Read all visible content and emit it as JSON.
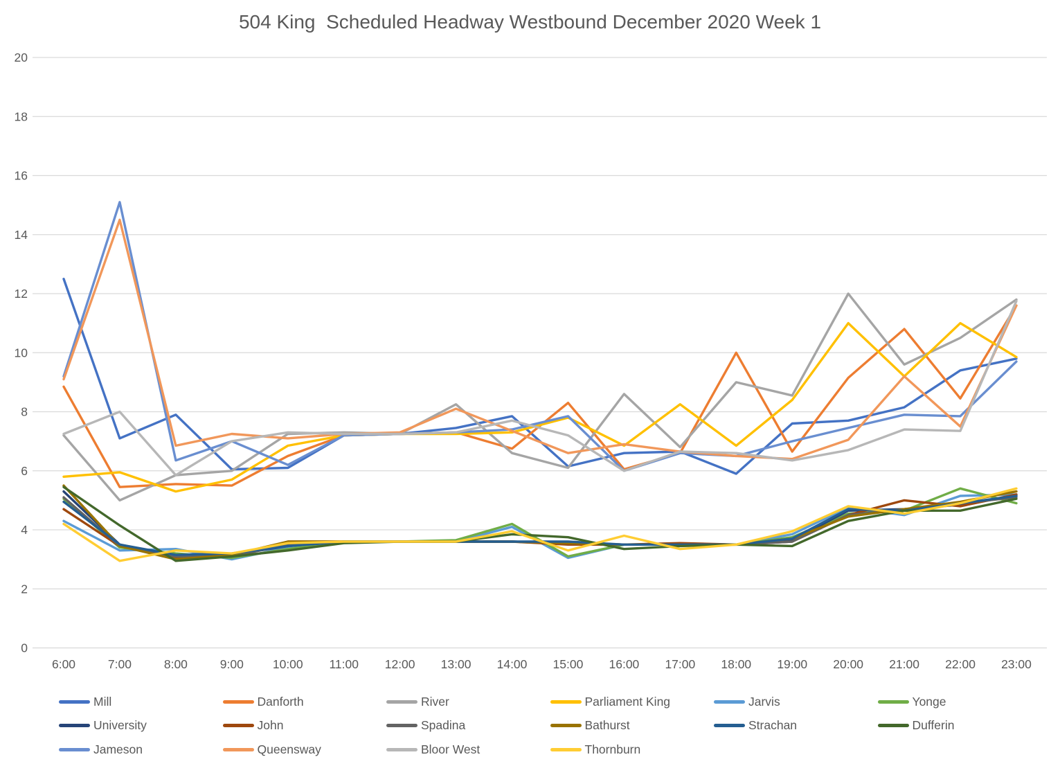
{
  "title": "504 King  Scheduled Headway Westbound December 2020 Week 1",
  "chart_data": {
    "type": "line",
    "title": "504 King  Scheduled Headway Westbound December 2020 Week 1",
    "xlabel": "",
    "ylabel": "",
    "ylim": [
      0,
      20
    ],
    "ytick_step": 2,
    "grid": true,
    "legend_position": "bottom",
    "x": [
      "6:00",
      "7:00",
      "8:00",
      "9:00",
      "10:00",
      "11:00",
      "12:00",
      "13:00",
      "14:00",
      "15:00",
      "16:00",
      "17:00",
      "18:00",
      "19:00",
      "20:00",
      "21:00",
      "22:00",
      "23:00"
    ],
    "series": [
      {
        "name": "Mill",
        "color": "#4472C4",
        "values": [
          12.5,
          7.1,
          7.9,
          6.05,
          6.1,
          7.2,
          7.25,
          7.45,
          7.85,
          6.15,
          6.6,
          6.65,
          5.9,
          7.6,
          7.7,
          8.15,
          9.4,
          9.8
        ]
      },
      {
        "name": "Danforth",
        "color": "#ED7D31",
        "values": [
          8.85,
          5.45,
          5.55,
          5.5,
          6.5,
          7.2,
          7.25,
          7.3,
          6.75,
          8.3,
          6.05,
          6.6,
          10.0,
          6.65,
          9.15,
          10.8,
          8.45,
          11.6
        ]
      },
      {
        "name": "River",
        "color": "#A5A5A5",
        "values": [
          7.2,
          5.0,
          5.85,
          6.0,
          7.25,
          7.3,
          7.25,
          8.25,
          6.6,
          6.1,
          8.6,
          6.8,
          9.0,
          8.55,
          12.0,
          9.6,
          10.5,
          11.8
        ]
      },
      {
        "name": "Parliament King",
        "color": "#FFC000",
        "values": [
          5.8,
          5.95,
          5.3,
          5.7,
          6.85,
          7.2,
          7.25,
          7.25,
          7.3,
          7.8,
          6.85,
          8.25,
          6.85,
          8.4,
          11.0,
          9.2,
          11.0,
          9.85
        ]
      },
      {
        "name": "Jarvis",
        "color": "#5B9BD5",
        "values": [
          4.3,
          3.3,
          3.35,
          3.0,
          3.4,
          3.6,
          3.6,
          3.6,
          4.1,
          3.05,
          3.5,
          3.5,
          3.5,
          3.85,
          4.75,
          4.5,
          5.15,
          5.2
        ]
      },
      {
        "name": "Yonge",
        "color": "#70AD47",
        "values": [
          5.05,
          3.4,
          3.2,
          3.05,
          3.35,
          3.6,
          3.6,
          3.65,
          4.2,
          3.1,
          3.5,
          3.5,
          3.5,
          3.75,
          4.55,
          4.65,
          5.4,
          4.9
        ]
      },
      {
        "name": "University",
        "color": "#264478",
        "values": [
          5.3,
          3.5,
          3.1,
          3.15,
          3.45,
          3.6,
          3.6,
          3.6,
          3.6,
          3.55,
          3.5,
          3.5,
          3.5,
          3.65,
          4.65,
          4.7,
          4.85,
          5.15
        ]
      },
      {
        "name": "John",
        "color": "#9E480E",
        "values": [
          4.7,
          3.45,
          3.05,
          3.1,
          3.6,
          3.6,
          3.6,
          3.6,
          3.6,
          3.5,
          3.5,
          3.55,
          3.5,
          3.6,
          4.5,
          5.0,
          4.8,
          5.2
        ]
      },
      {
        "name": "Spadina",
        "color": "#636363",
        "values": [
          5.1,
          3.45,
          3.1,
          3.1,
          3.5,
          3.6,
          3.6,
          3.6,
          3.6,
          3.55,
          3.5,
          3.5,
          3.5,
          3.6,
          4.5,
          4.7,
          4.9,
          5.1
        ]
      },
      {
        "name": "Bathurst",
        "color": "#997300",
        "values": [
          5.5,
          3.45,
          3.0,
          3.15,
          3.6,
          3.6,
          3.6,
          3.6,
          3.6,
          3.55,
          3.5,
          3.5,
          3.5,
          3.7,
          4.45,
          4.7,
          4.95,
          5.3
        ]
      },
      {
        "name": "Strachan",
        "color": "#255E91",
        "values": [
          4.95,
          3.5,
          3.15,
          3.2,
          3.45,
          3.6,
          3.6,
          3.6,
          3.6,
          3.6,
          3.5,
          3.5,
          3.5,
          3.7,
          4.7,
          4.65,
          4.9,
          5.15
        ]
      },
      {
        "name": "Dufferin",
        "color": "#43682B",
        "values": [
          5.45,
          4.15,
          2.95,
          3.1,
          3.3,
          3.55,
          3.6,
          3.6,
          3.85,
          3.75,
          3.35,
          3.45,
          3.5,
          3.45,
          4.3,
          4.65,
          4.65,
          5.05
        ]
      },
      {
        "name": "Jameson",
        "color": "#698ED0",
        "values": [
          9.2,
          15.1,
          6.35,
          7.0,
          6.2,
          7.2,
          7.25,
          7.3,
          7.4,
          7.85,
          6.0,
          6.6,
          6.5,
          7.0,
          7.45,
          7.9,
          7.85,
          9.7
        ]
      },
      {
        "name": "Queensway",
        "color": "#F1975A",
        "values": [
          9.1,
          14.5,
          6.85,
          7.25,
          7.1,
          7.25,
          7.3,
          8.1,
          7.35,
          6.6,
          6.9,
          6.65,
          6.5,
          6.4,
          7.05,
          9.2,
          7.5,
          11.6
        ]
      },
      {
        "name": "Bloor West",
        "color": "#B7B7B7",
        "values": [
          7.25,
          8.0,
          5.85,
          7.0,
          7.3,
          7.25,
          7.25,
          7.3,
          7.7,
          7.2,
          6.0,
          6.65,
          6.6,
          6.35,
          6.7,
          7.4,
          7.35,
          11.75
        ]
      },
      {
        "name": "Thornburn",
        "color": "#FFCD33",
        "values": [
          4.2,
          2.95,
          3.3,
          3.2,
          3.55,
          3.6,
          3.6,
          3.6,
          3.95,
          3.3,
          3.8,
          3.35,
          3.5,
          3.95,
          4.8,
          4.55,
          4.9,
          5.4
        ]
      }
    ]
  }
}
